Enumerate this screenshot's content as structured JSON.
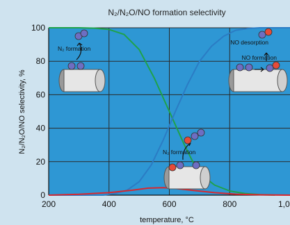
{
  "chart_data": {
    "type": "line",
    "title": "N₂/N₂O/NO formation selectivity",
    "xlabel": "temperature, °C",
    "ylabel": "N₂/N₂O/NO selectivity, %",
    "xlim": [
      200,
      1000
    ],
    "ylim": [
      0,
      100
    ],
    "x_ticks": [
      "200",
      "400",
      "600",
      "800",
      "1,0"
    ],
    "y_ticks": [
      "0",
      "20",
      "40",
      "60",
      "80",
      "100"
    ],
    "grid": true,
    "colors": {
      "background": "#cfe3ef",
      "plot_background": "#2e97d4",
      "n2": "#1fa24a",
      "no": "#2b7cc4",
      "n2o": "#d7282f",
      "molecule_blue": "#6e6ec2",
      "molecule_red": "#e64b38"
    },
    "series": [
      {
        "color": "#1fa24a",
        "points": [
          [
            200,
            100
          ],
          [
            300,
            100
          ],
          [
            350,
            99.8
          ],
          [
            400,
            99
          ],
          [
            450,
            96
          ],
          [
            500,
            87
          ],
          [
            550,
            70
          ],
          [
            600,
            50
          ],
          [
            625,
            40
          ],
          [
            650,
            30
          ],
          [
            675,
            21
          ],
          [
            700,
            13
          ],
          [
            750,
            6
          ],
          [
            800,
            2.5
          ],
          [
            850,
            1
          ],
          [
            900,
            0.3
          ],
          [
            950,
            0
          ]
        ]
      },
      {
        "color": "#2b7cc4",
        "points": [
          [
            200,
            0
          ],
          [
            380,
            0
          ],
          [
            420,
            1
          ],
          [
            460,
            3
          ],
          [
            500,
            8
          ],
          [
            540,
            18
          ],
          [
            580,
            33
          ],
          [
            620,
            50
          ],
          [
            660,
            66
          ],
          [
            700,
            80
          ],
          [
            740,
            89
          ],
          [
            780,
            95
          ],
          [
            820,
            98.5
          ],
          [
            860,
            99.6
          ],
          [
            900,
            100
          ],
          [
            1000,
            100
          ]
        ]
      },
      {
        "color": "#d7282f",
        "points": [
          [
            200,
            0
          ],
          [
            300,
            0.5
          ],
          [
            400,
            1.5
          ],
          [
            480,
            3
          ],
          [
            530,
            4.2
          ],
          [
            580,
            4.5
          ],
          [
            620,
            4
          ],
          [
            680,
            2.8
          ],
          [
            750,
            1.5
          ],
          [
            820,
            0.6
          ],
          [
            900,
            0.2
          ],
          [
            1000,
            0
          ]
        ]
      }
    ]
  },
  "annotations": {
    "n2_formation_left": "N₂ formation",
    "n2_formation_center": "N₂ formation",
    "no_desorption": "NO desorption",
    "no_formation": "NO formation"
  }
}
